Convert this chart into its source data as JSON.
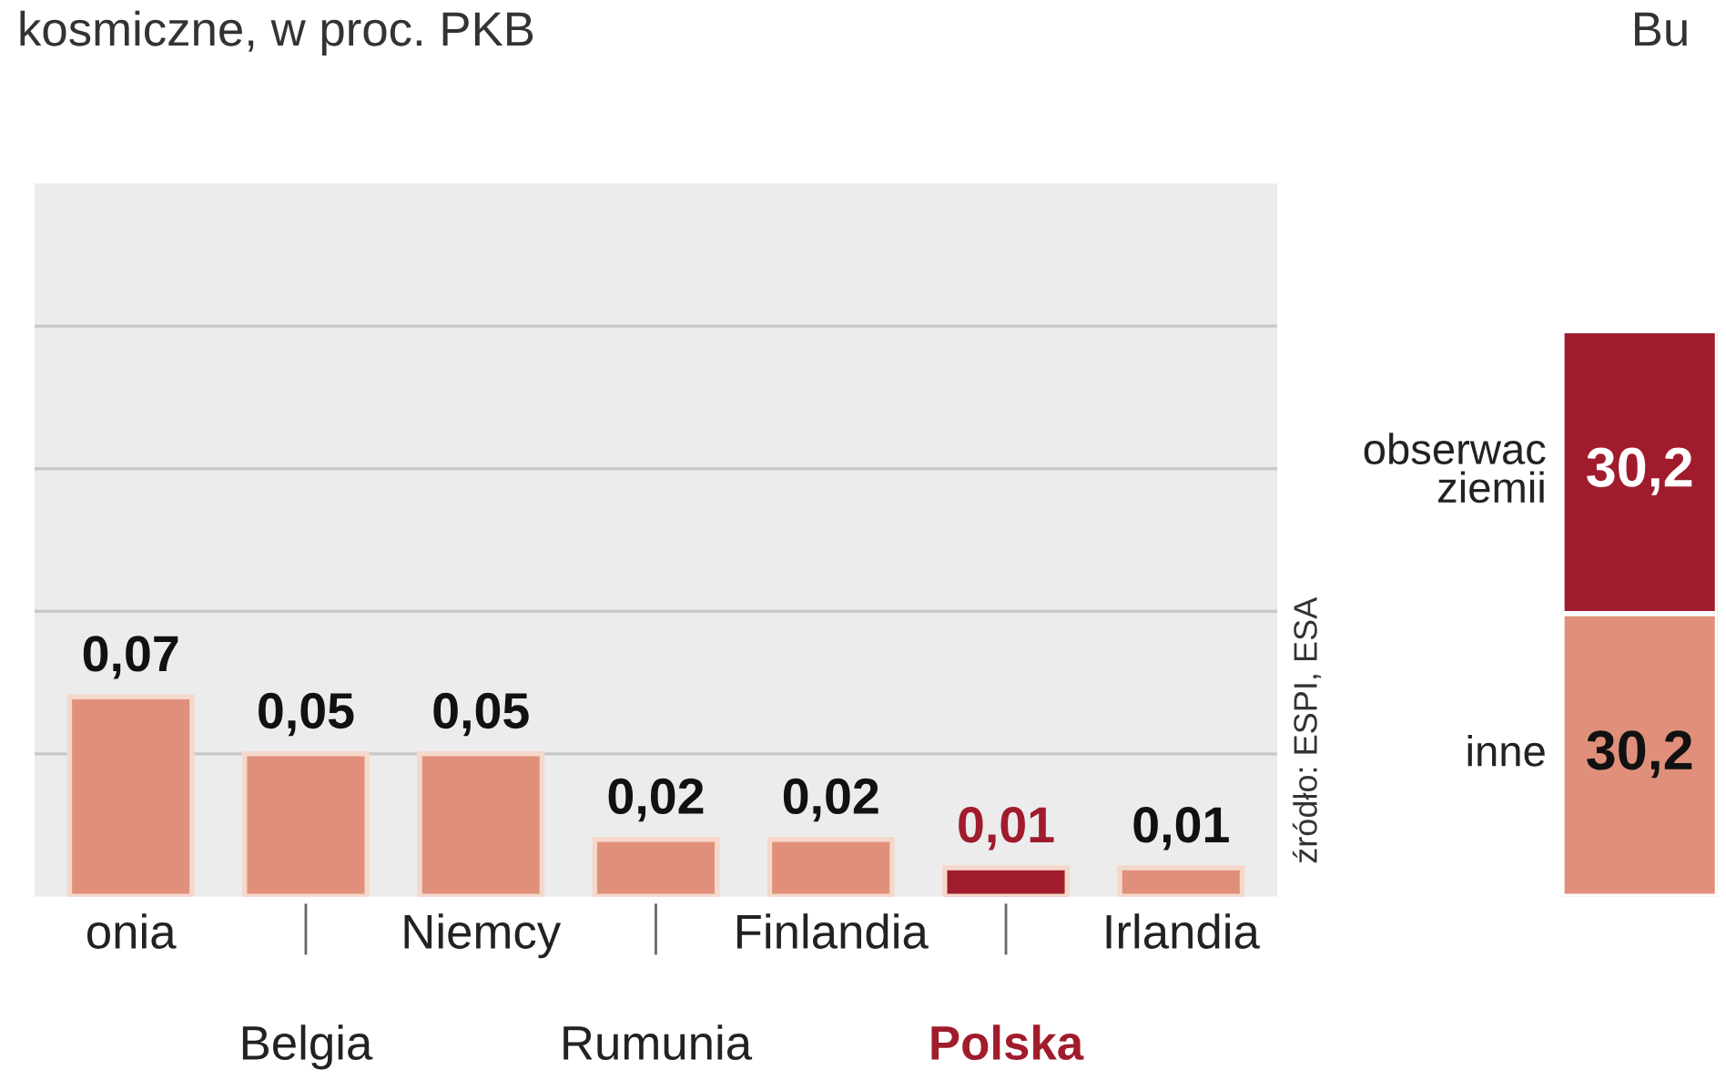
{
  "chart_data": [
    {
      "type": "bar",
      "title": "kosmiczne, w proc. PKB",
      "categories": [
        "onia",
        "Belgia",
        "Niemcy",
        "Rumunia",
        "Finlandia",
        "Polska",
        "Irlandia"
      ],
      "values": [
        0.07,
        0.05,
        0.05,
        0.02,
        0.02,
        0.01,
        0.01
      ],
      "colors": [
        "#e0907a",
        "#e0907a",
        "#e0907a",
        "#e0907a",
        "#e0907a",
        "#a01c2c",
        "#e0907a"
      ],
      "value_labels": [
        "0,07",
        "0,05",
        "0,05",
        "0,02",
        "0,02",
        "0,01",
        "0,01"
      ],
      "ylim": [
        0,
        0.25
      ],
      "yticks": [
        {
          "value": 0.05,
          "label": null
        },
        {
          "value": 0.1,
          "label": null
        },
        {
          "value": 0.15,
          "label": null
        },
        {
          "value": 0.2,
          "label": null
        }
      ],
      "grid": "y",
      "tick_labels": "x",
      "annotations": [
        "źródło: ESPI, ESA"
      ]
    },
    {
      "type": "bar",
      "title": "Bu",
      "stacked": true,
      "categories": [
        null
      ],
      "series": [
        {
          "name": "inne",
          "color": "#e0907a",
          "values": [
            30.2
          ],
          "value_labels": [
            "30,2"
          ]
        },
        {
          "name": "obserwac\nziemii",
          "color": "#a01c2c",
          "values": [
            30.2
          ],
          "value_labels": [
            "30,2"
          ]
        }
      ],
      "tick_labels": false
    }
  ]
}
